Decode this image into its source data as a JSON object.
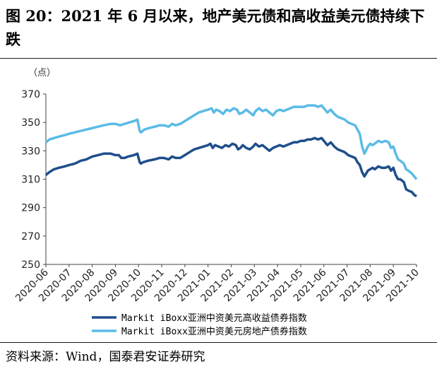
{
  "figure": {
    "title": "图 20：2021 年 6 月以来，地产美元债和高收益美元债持续下跌",
    "source": "资料来源：Wind，国泰君安证券研究"
  },
  "chart_data": {
    "type": "line",
    "unit": "（点）",
    "ylim": [
      250,
      370
    ],
    "yticks": [
      250,
      270,
      290,
      310,
      330,
      350,
      370
    ],
    "xticks": [
      "2020-06",
      "2020-07",
      "2020-08",
      "2020-09",
      "2020-10",
      "2020-11",
      "2020-12",
      "2021-01",
      "2021-02",
      "2021-03",
      "2021-04",
      "2021-05",
      "2021-06",
      "2021-07",
      "2021-08",
      "2021-09",
      "2021-10"
    ],
    "grid": false,
    "legend": "bottom",
    "series": [
      {
        "name": "Markit iBoxx亚洲中资美元高收益债券指数",
        "color": "#1f4e8c",
        "points": [
          [
            0.0,
            313
          ],
          [
            0.15,
            315
          ],
          [
            0.35,
            317
          ],
          [
            0.55,
            318
          ],
          [
            0.8,
            319
          ],
          [
            1.0,
            320
          ],
          [
            1.25,
            321
          ],
          [
            1.5,
            323
          ],
          [
            1.75,
            324
          ],
          [
            2.0,
            326
          ],
          [
            2.25,
            327
          ],
          [
            2.5,
            328
          ],
          [
            2.8,
            328
          ],
          [
            3.0,
            327
          ],
          [
            3.15,
            327
          ],
          [
            3.25,
            325
          ],
          [
            3.4,
            325
          ],
          [
            3.55,
            326
          ],
          [
            3.8,
            327
          ],
          [
            3.95,
            328
          ],
          [
            4.05,
            322
          ],
          [
            4.1,
            321
          ],
          [
            4.2,
            322
          ],
          [
            4.4,
            323
          ],
          [
            4.7,
            324
          ],
          [
            4.9,
            325
          ],
          [
            5.1,
            325
          ],
          [
            5.3,
            324
          ],
          [
            5.45,
            326
          ],
          [
            5.6,
            325
          ],
          [
            5.8,
            325
          ],
          [
            6.0,
            327
          ],
          [
            6.2,
            329
          ],
          [
            6.4,
            331
          ],
          [
            6.6,
            332
          ],
          [
            6.8,
            333
          ],
          [
            7.0,
            334
          ],
          [
            7.1,
            335
          ],
          [
            7.2,
            332
          ],
          [
            7.3,
            334
          ],
          [
            7.45,
            333
          ],
          [
            7.6,
            332
          ],
          [
            7.75,
            334
          ],
          [
            7.9,
            333
          ],
          [
            8.05,
            335
          ],
          [
            8.2,
            334
          ],
          [
            8.3,
            331
          ],
          [
            8.4,
            332
          ],
          [
            8.5,
            334
          ],
          [
            8.65,
            332
          ],
          [
            8.8,
            331
          ],
          [
            8.95,
            333
          ],
          [
            9.05,
            335
          ],
          [
            9.2,
            333
          ],
          [
            9.35,
            334
          ],
          [
            9.5,
            332
          ],
          [
            9.65,
            330
          ],
          [
            9.8,
            332
          ],
          [
            9.95,
            333
          ],
          [
            10.1,
            334
          ],
          [
            10.25,
            333
          ],
          [
            10.4,
            334
          ],
          [
            10.55,
            335
          ],
          [
            10.7,
            336
          ],
          [
            10.85,
            336
          ],
          [
            11.0,
            337
          ],
          [
            11.15,
            337
          ],
          [
            11.3,
            338
          ],
          [
            11.45,
            338
          ],
          [
            11.6,
            339
          ],
          [
            11.75,
            338
          ],
          [
            11.9,
            339
          ],
          [
            12.0,
            337
          ],
          [
            12.15,
            334
          ],
          [
            12.3,
            336
          ],
          [
            12.45,
            333
          ],
          [
            12.6,
            331
          ],
          [
            12.75,
            330
          ],
          [
            12.9,
            329
          ],
          [
            13.05,
            327
          ],
          [
            13.2,
            326
          ],
          [
            13.35,
            325
          ],
          [
            13.45,
            322
          ],
          [
            13.55,
            320
          ],
          [
            13.65,
            315
          ],
          [
            13.75,
            312
          ],
          [
            13.9,
            316
          ],
          [
            14.0,
            317
          ],
          [
            14.1,
            318
          ],
          [
            14.2,
            317
          ],
          [
            14.35,
            319
          ],
          [
            14.5,
            318
          ],
          [
            14.65,
            318
          ],
          [
            14.8,
            319
          ],
          [
            14.9,
            316
          ],
          [
            15.0,
            318
          ],
          [
            15.1,
            313
          ],
          [
            15.2,
            310
          ],
          [
            15.3,
            310
          ],
          [
            15.45,
            308
          ],
          [
            15.55,
            303
          ],
          [
            15.65,
            302
          ],
          [
            15.8,
            301
          ],
          [
            15.9,
            299
          ],
          [
            16.0,
            298
          ]
        ]
      },
      {
        "name": "Markit iBoxx亚洲中资美元房地产债券指数",
        "color": "#5bbbe6",
        "points": [
          [
            0.0,
            336
          ],
          [
            0.15,
            338
          ],
          [
            0.35,
            339
          ],
          [
            0.55,
            340
          ],
          [
            0.8,
            341
          ],
          [
            1.0,
            342
          ],
          [
            1.25,
            343
          ],
          [
            1.5,
            344
          ],
          [
            1.75,
            345
          ],
          [
            2.0,
            346
          ],
          [
            2.25,
            347
          ],
          [
            2.5,
            348
          ],
          [
            2.8,
            349
          ],
          [
            3.0,
            349
          ],
          [
            3.2,
            348
          ],
          [
            3.4,
            349
          ],
          [
            3.6,
            350
          ],
          [
            3.8,
            351
          ],
          [
            3.95,
            352
          ],
          [
            4.05,
            344
          ],
          [
            4.1,
            343
          ],
          [
            4.25,
            345
          ],
          [
            4.45,
            346
          ],
          [
            4.7,
            347
          ],
          [
            4.9,
            348
          ],
          [
            5.1,
            348
          ],
          [
            5.3,
            347
          ],
          [
            5.45,
            349
          ],
          [
            5.6,
            348
          ],
          [
            5.8,
            349
          ],
          [
            6.0,
            351
          ],
          [
            6.2,
            353
          ],
          [
            6.4,
            355
          ],
          [
            6.6,
            357
          ],
          [
            6.8,
            358
          ],
          [
            7.0,
            359
          ],
          [
            7.15,
            360
          ],
          [
            7.25,
            357
          ],
          [
            7.35,
            359
          ],
          [
            7.5,
            358
          ],
          [
            7.65,
            356
          ],
          [
            7.8,
            359
          ],
          [
            7.95,
            358
          ],
          [
            8.1,
            360
          ],
          [
            8.25,
            359
          ],
          [
            8.35,
            356
          ],
          [
            8.5,
            357
          ],
          [
            8.65,
            359
          ],
          [
            8.8,
            357
          ],
          [
            8.95,
            355
          ],
          [
            9.05,
            358
          ],
          [
            9.2,
            360
          ],
          [
            9.35,
            358
          ],
          [
            9.5,
            359
          ],
          [
            9.65,
            357
          ],
          [
            9.8,
            355
          ],
          [
            9.95,
            358
          ],
          [
            10.1,
            359
          ],
          [
            10.25,
            358
          ],
          [
            10.4,
            359
          ],
          [
            10.55,
            360
          ],
          [
            10.7,
            361
          ],
          [
            10.85,
            361
          ],
          [
            11.0,
            361
          ],
          [
            11.15,
            361
          ],
          [
            11.3,
            362
          ],
          [
            11.45,
            362
          ],
          [
            11.6,
            362
          ],
          [
            11.75,
            361
          ],
          [
            11.9,
            362
          ],
          [
            12.0,
            360
          ],
          [
            12.15,
            357
          ],
          [
            12.3,
            359
          ],
          [
            12.45,
            356
          ],
          [
            12.6,
            354
          ],
          [
            12.75,
            353
          ],
          [
            12.9,
            352
          ],
          [
            13.05,
            350
          ],
          [
            13.2,
            349
          ],
          [
            13.35,
            348
          ],
          [
            13.45,
            345
          ],
          [
            13.55,
            342
          ],
          [
            13.65,
            333
          ],
          [
            13.75,
            328
          ],
          [
            13.9,
            333
          ],
          [
            14.0,
            335
          ],
          [
            14.1,
            334
          ],
          [
            14.2,
            335
          ],
          [
            14.35,
            337
          ],
          [
            14.5,
            336
          ],
          [
            14.65,
            337
          ],
          [
            14.8,
            336
          ],
          [
            14.9,
            332
          ],
          [
            15.0,
            333
          ],
          [
            15.1,
            328
          ],
          [
            15.2,
            324
          ],
          [
            15.3,
            323
          ],
          [
            15.45,
            321
          ],
          [
            15.55,
            317
          ],
          [
            15.65,
            316
          ],
          [
            15.8,
            314
          ],
          [
            15.9,
            312
          ],
          [
            16.0,
            310
          ]
        ]
      }
    ]
  }
}
